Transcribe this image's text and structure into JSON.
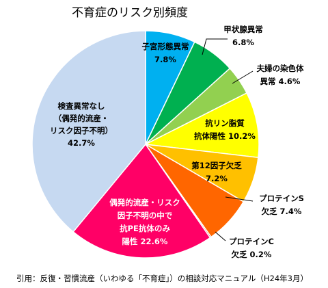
{
  "chart_data": {
    "type": "pie",
    "title": "不育症のリスク別頻度",
    "source": "引用：反復・習慣流産（いわゆる「不育症」）の相談対応マニュアル（H24年3月）",
    "unit": "%",
    "start": "top, clockwise",
    "slices": [
      {
        "lines": [
          "子宮形態異常",
          "7.8%"
        ],
        "value": 7.8,
        "color": "#00b0f0",
        "text_color": "#000000"
      },
      {
        "lines": [
          "甲状腺異常",
          "6.8%"
        ],
        "value": 6.8,
        "color": "#00b050",
        "text_color": "#000000"
      },
      {
        "lines": [
          "夫婦の染色体",
          "異常 4.6%"
        ],
        "value": 4.6,
        "color": "#92d050",
        "text_color": "#000000"
      },
      {
        "lines": [
          "抗リン脂質",
          "抗体陽性 10.2%"
        ],
        "value": 10.2,
        "color": "#ffff00",
        "text_color": "#000000"
      },
      {
        "lines": [
          "第12因子欠乏",
          "7.2%"
        ],
        "value": 7.2,
        "color": "#ffc000",
        "text_color": "#000000"
      },
      {
        "lines": [
          "プロテインS",
          "欠乏 7.4%"
        ],
        "value": 7.4,
        "color": "#ff6600",
        "text_color": "#000000"
      },
      {
        "lines": [
          "プロテインC",
          "欠乏 0.2%"
        ],
        "value": 0.2,
        "color": "#c00000",
        "text_color": "#000000"
      },
      {
        "lines": [
          "偶発的流産・リスク",
          "因子不明の中で",
          "抗PE抗体のみ",
          "陽性 22.6%"
        ],
        "value": 22.6,
        "color": "#ff0066",
        "text_color": "#ffffff"
      },
      {
        "lines": [
          "検査異常なし",
          "（偶発的流産・",
          "リスク因子不明）",
          "42.7%"
        ],
        "value": 42.7,
        "color": "#c6d9f1",
        "text_color": "#000000"
      }
    ]
  }
}
